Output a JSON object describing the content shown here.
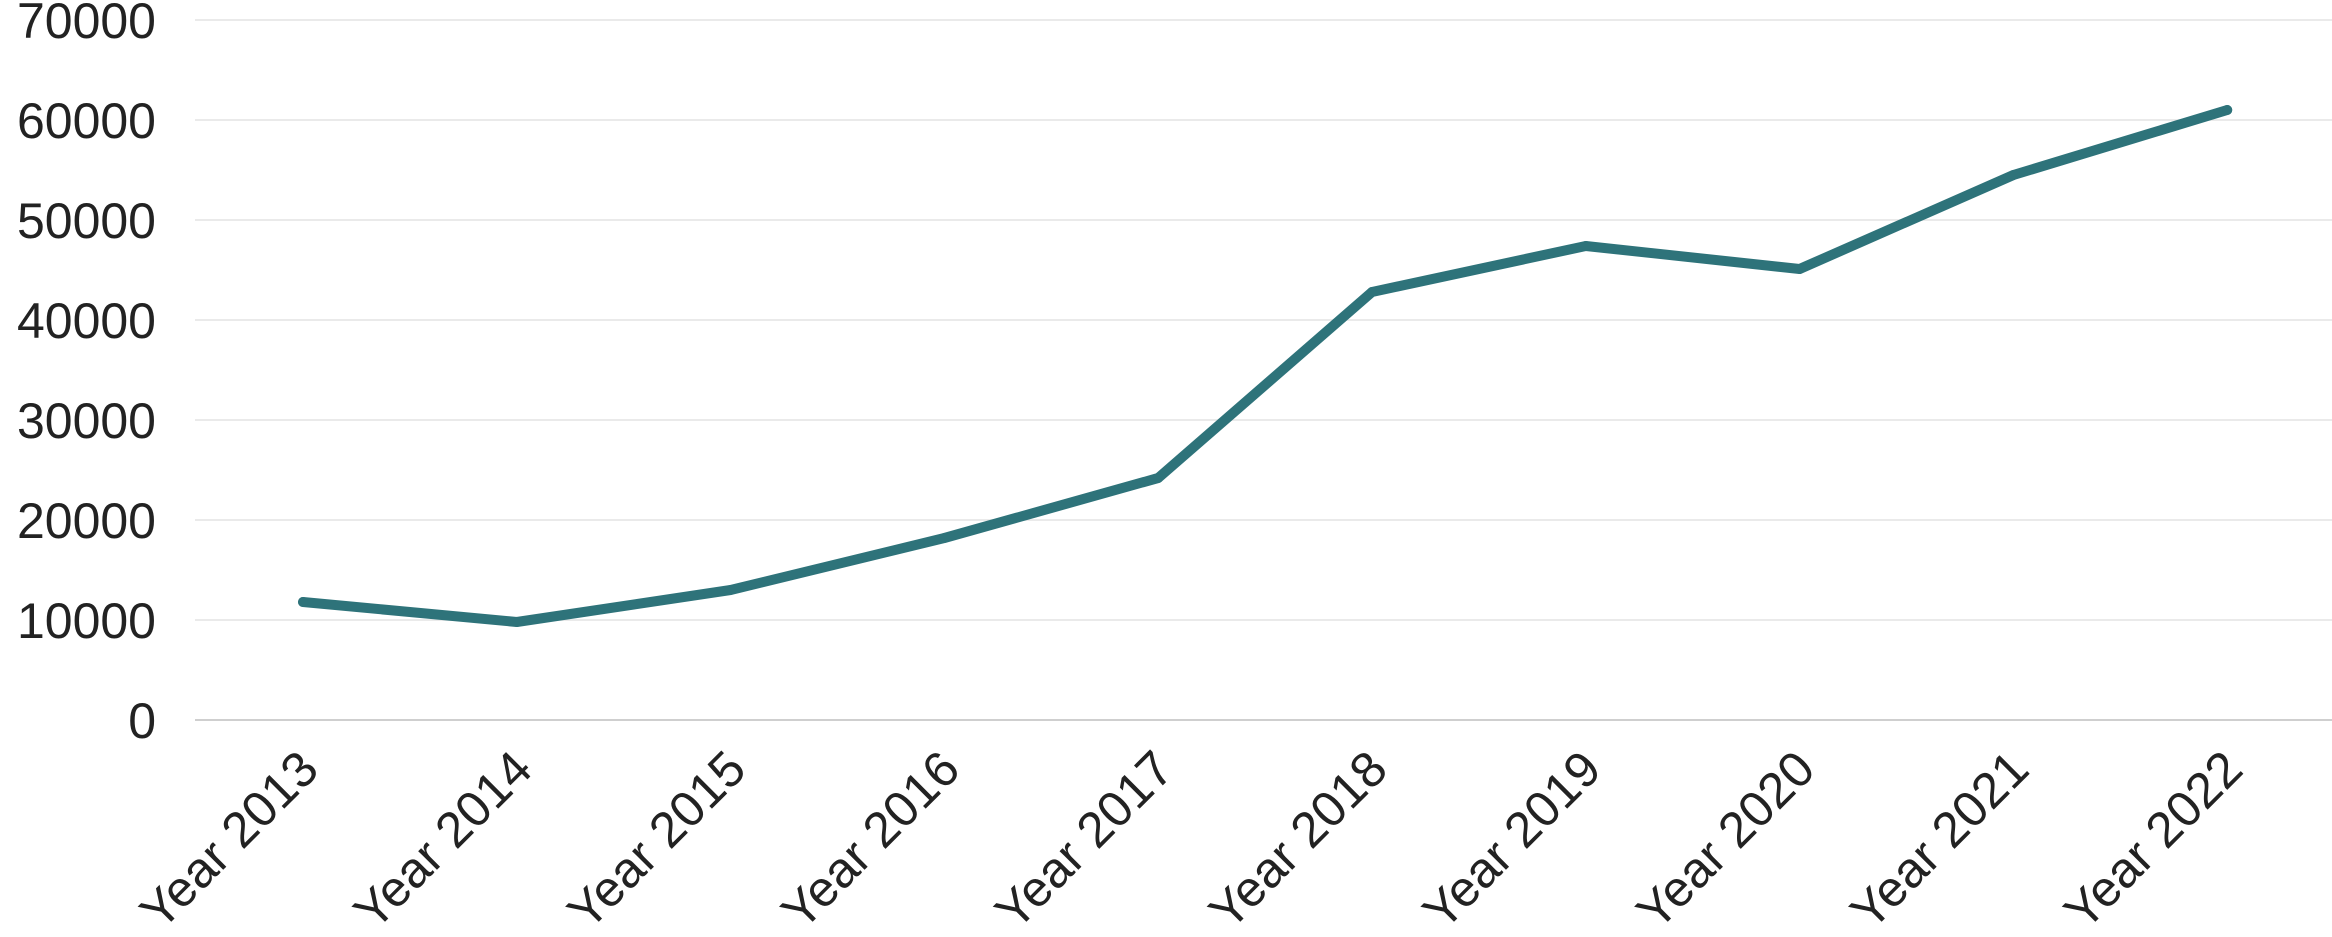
{
  "chart_data": {
    "type": "line",
    "categories": [
      "Year 2013",
      "Year 2014",
      "Year 2015",
      "Year 2016",
      "Year 2017",
      "Year 2018",
      "Year 2019",
      "Year 2020",
      "Year 2021",
      "Year 2022"
    ],
    "series": [
      {
        "values": [
          11800,
          9800,
          13000,
          18200,
          24200,
          42800,
          47400,
          45100,
          54500,
          61000
        ],
        "color": "#2e737a"
      }
    ],
    "yticks": [
      "0",
      "10000",
      "20000",
      "30000",
      "40000",
      "50000",
      "60000",
      "70000"
    ],
    "ylim": [
      0,
      70000
    ],
    "grid": true,
    "legend": "none"
  }
}
